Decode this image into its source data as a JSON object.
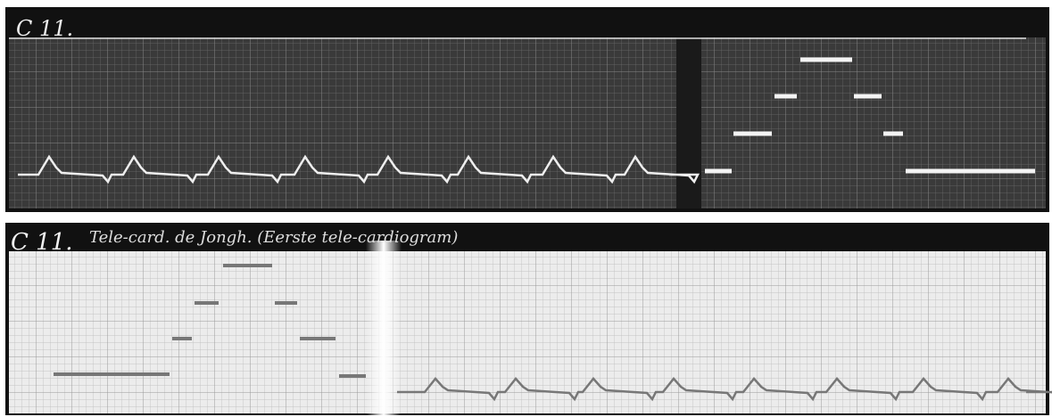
{
  "top_strip": {
    "label": "C 11."
  },
  "bottom_strip": {
    "label": "C 11.",
    "caption": "Tele-card. de Jongh. (Eerste tele-cardiogram)"
  }
}
